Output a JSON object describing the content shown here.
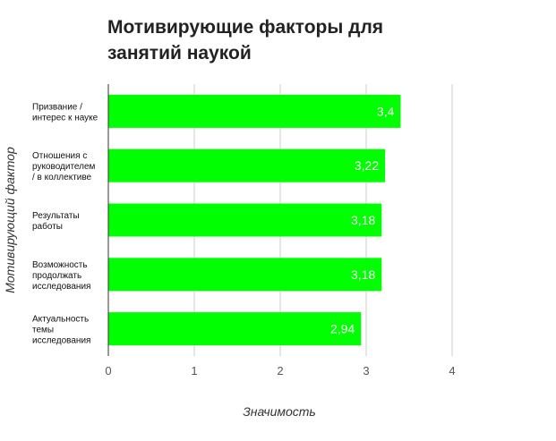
{
  "chart_data": {
    "type": "bar",
    "orientation": "horizontal",
    "title": "Мотивирующие факторы для занятий наукой",
    "xlabel": "Значимость",
    "ylabel": "Мотивирующий фактор",
    "categories": [
      [
        "Призвание /",
        "интерес к науке"
      ],
      [
        "Отношения с",
        "руководителем",
        "/ в коллективе"
      ],
      [
        "Результаты",
        "работы"
      ],
      [
        "Возможность",
        "продолжать",
        "исследования"
      ],
      [
        "Актуальность",
        "темы",
        "исследования"
      ]
    ],
    "values": [
      3.4,
      3.22,
      3.18,
      3.18,
      2.94
    ],
    "value_labels": [
      "3,4",
      "3,22",
      "3,18",
      "3,18",
      "2,94"
    ],
    "xlim": [
      0,
      4
    ],
    "xticks": [
      "0",
      "1",
      "2",
      "3",
      "4"
    ],
    "grid": true,
    "bar_color": "#00ff00",
    "grid_color": "#cccccc",
    "axis_color": "#333333"
  }
}
